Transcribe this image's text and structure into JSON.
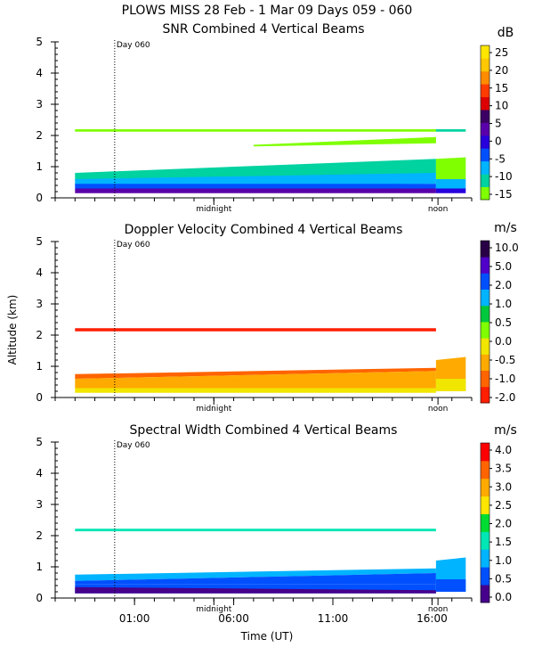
{
  "title": "PLOWS MISS  28 Feb -  1 Mar 09 Days 059 - 060",
  "y_label": "Altitude (km)",
  "x_label": "Time (UT)",
  "shared_x": {
    "range_hours": [
      21.0,
      42.0
    ],
    "ticks": [
      {
        "h": 25.0,
        "label": "01:00"
      },
      {
        "h": 30.0,
        "label": "06:00"
      },
      {
        "h": 35.0,
        "label": "11:00"
      },
      {
        "h": 40.0,
        "label": "16:00"
      }
    ],
    "markers": [
      {
        "h": 24.0,
        "label": "Day 060",
        "dotted": true
      },
      {
        "h": 29.0,
        "label": "midnight"
      },
      {
        "h": 40.3,
        "label": "noon"
      }
    ]
  },
  "colors": {
    "snr": [
      "#7fff00",
      "#00d2a0",
      "#00b4ff",
      "#0050ff",
      "#2800dc",
      "#5a00aa",
      "#3c0064",
      "#dc0000",
      "#ff3c00",
      "#ff8c00",
      "#ffc800",
      "#ffe600"
    ],
    "doppler": [
      "#ff1e00",
      "#ff6400",
      "#ffaa00",
      "#f0e600",
      "#7fff00",
      "#00c83c",
      "#00b4ff",
      "#0050ff",
      "#5000c8",
      "#280046"
    ],
    "width": [
      "#46008c",
      "#0050ff",
      "#00b4ff",
      "#00e6b4",
      "#00dc32",
      "#ffe600",
      "#ffaa00",
      "#ff6400",
      "#ff0000"
    ]
  },
  "chart_data": [
    {
      "type": "heatmap",
      "title": "SNR Combined 4 Vertical Beams",
      "units": "dB",
      "ylim": [
        0,
        5
      ],
      "y_ticks": [
        0,
        1,
        2,
        3,
        4,
        5
      ],
      "colorbar_labels": [
        "25",
        "20",
        "15",
        "10",
        "5",
        "0",
        "-5",
        "-10",
        "-15"
      ],
      "layers": [
        {
          "h0": 22.0,
          "h1": 40.2,
          "z0s": 2.12,
          "z1s": 2.2,
          "z0e": 2.12,
          "z1e": 2.2,
          "c": 0
        },
        {
          "h0": 40.2,
          "h1": 41.7,
          "z0s": 2.12,
          "z1s": 2.2,
          "z0e": 2.12,
          "z1e": 2.2,
          "c": 1
        },
        {
          "h0": 31.0,
          "h1": 40.2,
          "z0s": 1.65,
          "z1s": 1.7,
          "z0e": 1.75,
          "z1e": 1.95,
          "c": 0
        },
        {
          "h0": 22.0,
          "h1": 40.2,
          "z0s": 0.55,
          "z1s": 0.8,
          "z0e": 0.75,
          "z1e": 1.25,
          "c": 1
        },
        {
          "h0": 22.0,
          "h1": 40.2,
          "z0s": 0.4,
          "z1s": 0.6,
          "z0e": 0.45,
          "z1e": 0.8,
          "c": 2
        },
        {
          "h0": 22.0,
          "h1": 40.2,
          "z0s": 0.3,
          "z1s": 0.45,
          "z0e": 0.3,
          "z1e": 0.45,
          "c": 3
        },
        {
          "h0": 22.0,
          "h1": 40.2,
          "z0s": 0.15,
          "z1s": 0.3,
          "z0e": 0.15,
          "z1e": 0.3,
          "c": 5
        },
        {
          "h0": 40.2,
          "h1": 41.7,
          "z0s": 0.6,
          "z1s": 1.25,
          "z0e": 0.6,
          "z1e": 1.3,
          "c": 0
        },
        {
          "h0": 40.2,
          "h1": 41.7,
          "z0s": 0.3,
          "z1s": 0.6,
          "z0e": 0.3,
          "z1e": 0.6,
          "c": 2
        },
        {
          "h0": 40.2,
          "h1": 41.7,
          "z0s": 0.15,
          "z1s": 0.3,
          "z0e": 0.15,
          "z1e": 0.3,
          "c": 4
        }
      ]
    },
    {
      "type": "heatmap",
      "title": "Doppler Velocity Combined 4 Vertical Beams",
      "units": "m/s",
      "ylim": [
        0,
        5
      ],
      "y_ticks": [
        0,
        1,
        2,
        3,
        4,
        5
      ],
      "colorbar_labels": [
        "10.0",
        "5.0",
        "2.0",
        "1.0",
        "0.5",
        "0.0",
        "-0.5",
        "-1.0",
        "-2.0"
      ],
      "layers": [
        {
          "h0": 22.0,
          "h1": 40.2,
          "z0s": 2.12,
          "z1s": 2.22,
          "z0e": 2.12,
          "z1e": 2.22,
          "c": 0
        },
        {
          "h0": 22.0,
          "h1": 40.2,
          "z0s": 0.6,
          "z1s": 0.75,
          "z0e": 0.85,
          "z1e": 0.95,
          "c": 1
        },
        {
          "h0": 22.0,
          "h1": 40.2,
          "z0s": 0.3,
          "z1s": 0.6,
          "z0e": 0.3,
          "z1e": 0.85,
          "c": 2
        },
        {
          "h0": 22.0,
          "h1": 40.2,
          "z0s": 0.15,
          "z1s": 0.3,
          "z0e": 0.15,
          "z1e": 0.3,
          "c": 3
        },
        {
          "h0": 40.2,
          "h1": 41.7,
          "z0s": 0.2,
          "z1s": 1.2,
          "z0e": 0.2,
          "z1e": 1.3,
          "c": 2
        },
        {
          "h0": 40.2,
          "h1": 41.7,
          "z0s": 0.2,
          "z1s": 0.6,
          "z0e": 0.2,
          "z1e": 0.6,
          "c": 3
        }
      ]
    },
    {
      "type": "heatmap",
      "title": "Spectral Width Combined 4 Vertical Beams",
      "units": "m/s",
      "ylim": [
        0,
        5
      ],
      "y_ticks": [
        0,
        1,
        2,
        3,
        4,
        5
      ],
      "colorbar_labels": [
        "4.0",
        "3.5",
        "3.0",
        "2.5",
        "2.0",
        "1.5",
        "1.0",
        "0.5",
        "0.0"
      ],
      "layers": [
        {
          "h0": 22.0,
          "h1": 40.2,
          "z0s": 2.14,
          "z1s": 2.22,
          "z0e": 2.14,
          "z1e": 2.22,
          "c": 3
        },
        {
          "h0": 22.0,
          "h1": 40.2,
          "z0s": 0.55,
          "z1s": 0.75,
          "z0e": 0.8,
          "z1e": 0.95,
          "c": 2
        },
        {
          "h0": 22.0,
          "h1": 40.2,
          "z0s": 0.45,
          "z1s": 0.55,
          "z0e": 0.45,
          "z1e": 0.8,
          "c": 1
        },
        {
          "h0": 22.0,
          "h1": 40.2,
          "z0s": 0.15,
          "z1s": 0.45,
          "z0e": 0.15,
          "z1e": 0.45,
          "c": 1
        },
        {
          "h0": 22.0,
          "h1": 40.2,
          "z0s": 0.15,
          "z1s": 0.35,
          "z0e": 0.15,
          "z1e": 0.25,
          "c": 0
        },
        {
          "h0": 40.2,
          "h1": 41.7,
          "z0s": 0.2,
          "z1s": 1.2,
          "z0e": 0.2,
          "z1e": 1.3,
          "c": 2
        },
        {
          "h0": 40.2,
          "h1": 41.7,
          "z0s": 0.2,
          "z1s": 0.6,
          "z0e": 0.2,
          "z1e": 0.6,
          "c": 1
        }
      ]
    }
  ]
}
